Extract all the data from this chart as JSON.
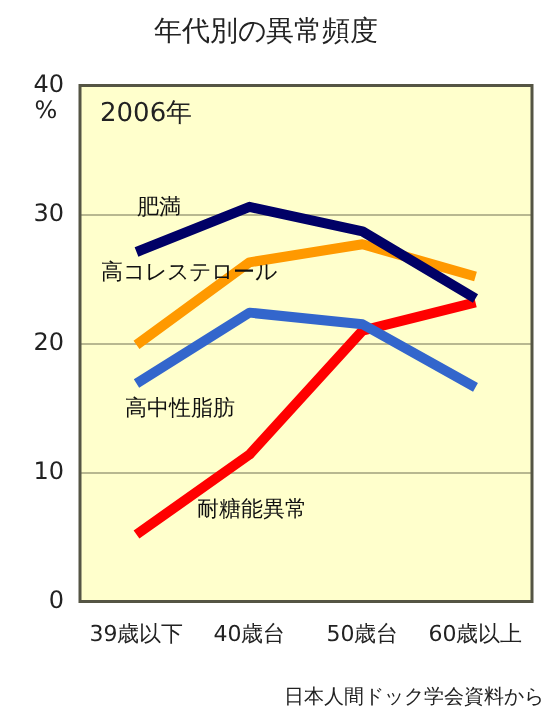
{
  "chart_data": {
    "type": "line",
    "title": "年代別の異常頻度",
    "ylabel": "%",
    "categories": [
      "39歳以下",
      "40歳台",
      "50歳台",
      "60歳以上"
    ],
    "series": [
      {
        "name": "肥満",
        "color": "#000066",
        "values": [
          27.1,
          30.6,
          28.7,
          23.5
        ]
      },
      {
        "name": "高コレステロール",
        "color": "#ff9900",
        "values": [
          19.9,
          26.3,
          27.7,
          25.2
        ]
      },
      {
        "name": "高中性脂肪",
        "color": "#3366cc",
        "values": [
          16.9,
          22.4,
          21.5,
          16.6
        ]
      },
      {
        "name": "耐糖能異常",
        "color": "#ff0000",
        "values": [
          5.2,
          11.4,
          21.0,
          23.2
        ]
      }
    ],
    "ylim": [
      0,
      40
    ],
    "yticks": [
      0,
      10,
      20,
      30,
      40
    ],
    "grid": "y",
    "legend": false,
    "marker": "none",
    "line_style": "solid",
    "annotations": [
      "2006年",
      "日本人間ドック学会資料から"
    ]
  }
}
